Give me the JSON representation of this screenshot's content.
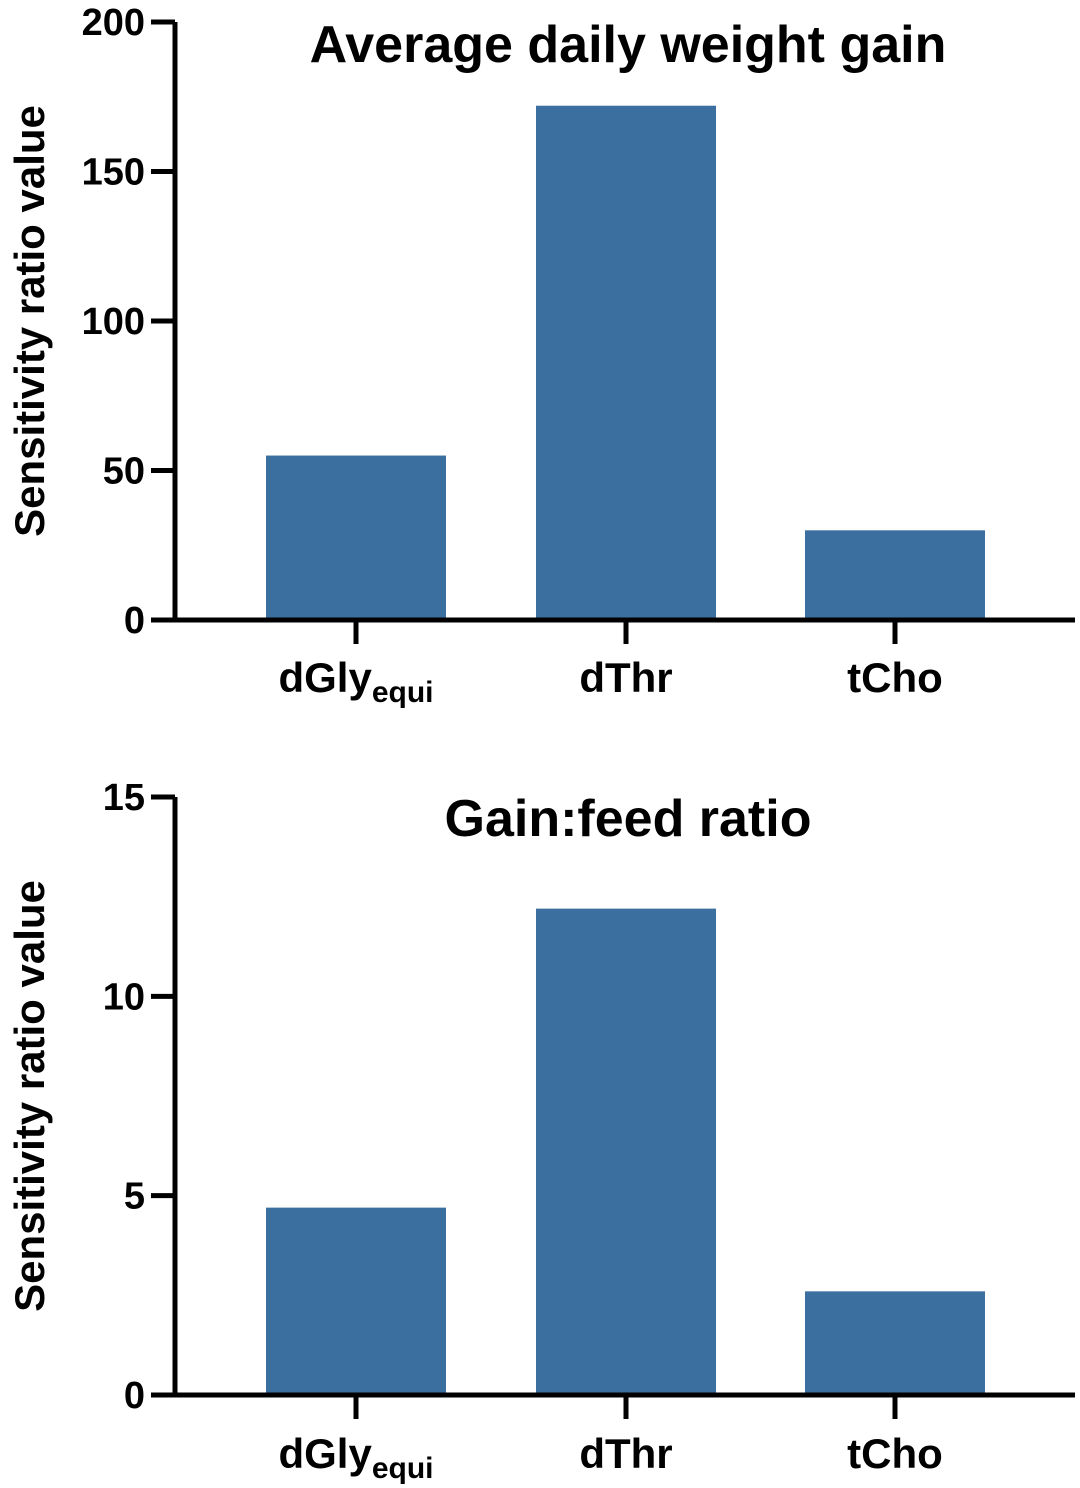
{
  "bar_color": "#3a6f9f",
  "axis_color": "#000000",
  "chart_data": [
    {
      "type": "bar",
      "title": "Average daily weight gain",
      "ylabel": "Sensitivity ratio value",
      "xlabel": "",
      "ylim": [
        0,
        200
      ],
      "yticks": [
        0,
        50,
        100,
        150,
        200
      ],
      "categories": [
        {
          "main": "dGly",
          "sub": "equi"
        },
        {
          "main": "dThr",
          "sub": ""
        },
        {
          "main": "tCho",
          "sub": ""
        }
      ],
      "values": [
        55,
        172,
        30
      ]
    },
    {
      "type": "bar",
      "title": "Gain:feed ratio",
      "ylabel": "Sensitivity ratio value",
      "xlabel": "",
      "ylim": [
        0,
        15
      ],
      "yticks": [
        0,
        5,
        10,
        15
      ],
      "categories": [
        {
          "main": "dGly",
          "sub": "equi"
        },
        {
          "main": "dThr",
          "sub": ""
        },
        {
          "main": "tCho",
          "sub": ""
        }
      ],
      "values": [
        4.7,
        12.2,
        2.6
      ]
    }
  ]
}
